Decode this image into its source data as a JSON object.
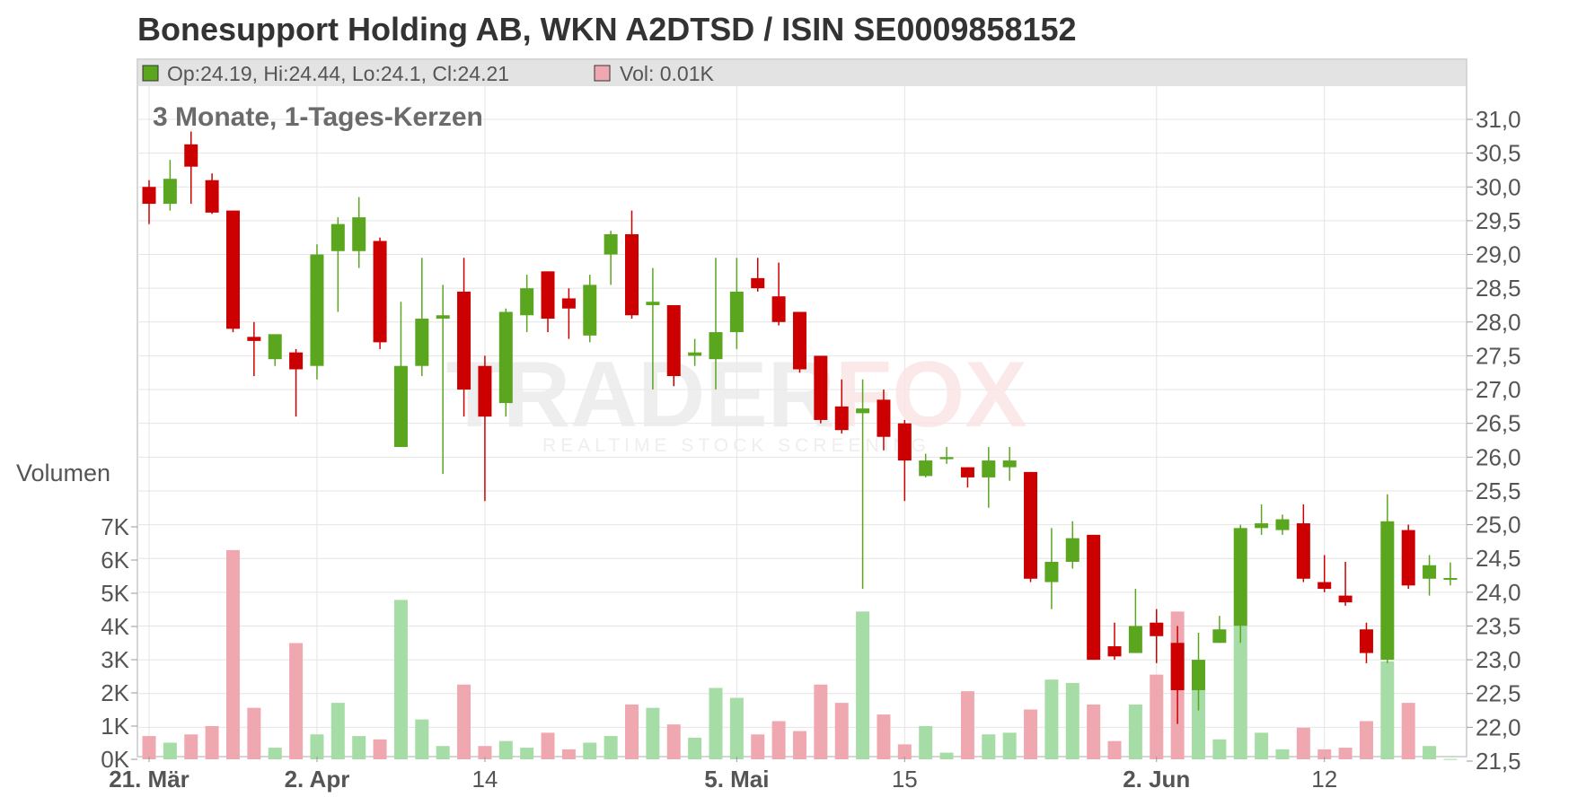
{
  "title": "Bonesupport Holding AB, WKN A2DTSD / ISIN SE0009858152",
  "subtitle": "3 Monate, 1-Tages-Kerzen",
  "info": {
    "ohlc_text": "Op:24.19, Hi:24.44, Lo:24.1, Cl:24.21",
    "vol_text": "Vol: 0.01K",
    "up_color": "#5aa61e",
    "vol_color": "#f0a8b0"
  },
  "watermark": {
    "brand_part1": "TRADER",
    "brand_part2": "FOX",
    "tagline": "REALTIME STOCK SCREENING"
  },
  "chart_data": {
    "type": "candlestick",
    "price_axis": {
      "min": 21.5,
      "max": 31.0,
      "step": 0.5,
      "tick_labels": [
        "21,5",
        "22,0",
        "22,5",
        "23,0",
        "23,5",
        "24,0",
        "24,5",
        "25,0",
        "25,5",
        "26,0",
        "26,5",
        "27,0",
        "27,5",
        "28,0",
        "28,5",
        "29,0",
        "29,5",
        "30,0",
        "30,5",
        "31,0"
      ]
    },
    "volume_axis": {
      "label": "Volumen",
      "min": 0,
      "max": 7000,
      "tick_labels": [
        "0K",
        "1K",
        "2K",
        "3K",
        "4K",
        "5K",
        "6K",
        "7K"
      ],
      "tick_values": [
        0,
        1000,
        2000,
        3000,
        4000,
        5000,
        6000,
        7000
      ]
    },
    "x_labels": [
      {
        "text": "21. Mär",
        "index": 0,
        "bold": true
      },
      {
        "text": "2. Apr",
        "index": 8,
        "bold": true
      },
      {
        "text": "14",
        "index": 16,
        "bold": false
      },
      {
        "text": "5. Mai",
        "index": 28,
        "bold": true
      },
      {
        "text": "15",
        "index": 36,
        "bold": false
      },
      {
        "text": "2. Jun",
        "index": 48,
        "bold": true
      },
      {
        "text": "12",
        "index": 56,
        "bold": false
      }
    ],
    "colors": {
      "up": "#5aa61e",
      "down": "#cc0000",
      "vol_up": "#a6dca6",
      "vol_down": "#f0a8b0",
      "vol_neutral": "#bbbbbb"
    },
    "candles": [
      {
        "o": 30.0,
        "h": 30.1,
        "l": 29.45,
        "c": 29.75,
        "v": 700
      },
      {
        "o": 29.75,
        "h": 30.4,
        "l": 29.65,
        "c": 30.12,
        "v": 500
      },
      {
        "o": 30.63,
        "h": 30.82,
        "l": 29.75,
        "c": 30.3,
        "v": 750
      },
      {
        "o": 30.1,
        "h": 30.2,
        "l": 29.6,
        "c": 29.62,
        "v": 1000
      },
      {
        "o": 29.65,
        "h": 29.65,
        "l": 27.85,
        "c": 27.9,
        "v": 6300
      },
      {
        "o": 27.78,
        "h": 28.0,
        "l": 27.2,
        "c": 27.72,
        "v": 1550
      },
      {
        "o": 27.45,
        "h": 27.8,
        "l": 27.35,
        "c": 27.82,
        "v": 350
      },
      {
        "o": 27.55,
        "h": 27.6,
        "l": 26.6,
        "c": 27.3,
        "v": 3500
      },
      {
        "o": 27.35,
        "h": 29.15,
        "l": 27.15,
        "c": 29.0,
        "v": 750
      },
      {
        "o": 29.05,
        "h": 29.55,
        "l": 28.15,
        "c": 29.45,
        "v": 1700
      },
      {
        "o": 29.05,
        "h": 29.85,
        "l": 28.8,
        "c": 29.55,
        "v": 700
      },
      {
        "o": 29.2,
        "h": 29.25,
        "l": 27.6,
        "c": 27.7,
        "v": 600
      },
      {
        "o": 26.15,
        "h": 28.3,
        "l": 26.15,
        "c": 27.35,
        "v": 4800
      },
      {
        "o": 27.35,
        "h": 28.95,
        "l": 27.2,
        "c": 28.05,
        "v": 1200
      },
      {
        "o": 28.05,
        "h": 28.55,
        "l": 25.75,
        "c": 28.1,
        "v": 400
      },
      {
        "o": 28.45,
        "h": 28.95,
        "l": 26.6,
        "c": 27.0,
        "v": 2250
      },
      {
        "o": 27.35,
        "h": 27.5,
        "l": 25.35,
        "c": 26.6,
        "v": 400
      },
      {
        "o": 26.8,
        "h": 28.2,
        "l": 26.6,
        "c": 28.15,
        "v": 550
      },
      {
        "o": 28.1,
        "h": 28.7,
        "l": 27.85,
        "c": 28.5,
        "v": 350
      },
      {
        "o": 28.75,
        "h": 28.75,
        "l": 27.85,
        "c": 28.05,
        "v": 800
      },
      {
        "o": 28.35,
        "h": 28.5,
        "l": 27.75,
        "c": 28.2,
        "v": 300
      },
      {
        "o": 27.8,
        "h": 28.7,
        "l": 27.7,
        "c": 28.55,
        "v": 500
      },
      {
        "o": 29.0,
        "h": 29.35,
        "l": 28.55,
        "c": 29.3,
        "v": 700
      },
      {
        "o": 29.3,
        "h": 29.65,
        "l": 28.05,
        "c": 28.1,
        "v": 1650
      },
      {
        "o": 28.25,
        "h": 28.8,
        "l": 27.0,
        "c": 28.3,
        "v": 1550
      },
      {
        "o": 28.25,
        "h": 28.25,
        "l": 27.05,
        "c": 27.2,
        "v": 1050
      },
      {
        "o": 27.5,
        "h": 27.75,
        "l": 27.35,
        "c": 27.55,
        "v": 650
      },
      {
        "o": 27.45,
        "h": 28.95,
        "l": 27.0,
        "c": 27.85,
        "v": 2150
      },
      {
        "o": 27.85,
        "h": 28.95,
        "l": 27.6,
        "c": 28.45,
        "v": 1850
      },
      {
        "o": 28.65,
        "h": 28.95,
        "l": 28.45,
        "c": 28.5,
        "v": 750
      },
      {
        "o": 28.38,
        "h": 28.88,
        "l": 27.95,
        "c": 28.0,
        "v": 1150
      },
      {
        "o": 28.15,
        "h": 28.15,
        "l": 27.25,
        "c": 27.3,
        "v": 850
      },
      {
        "o": 27.5,
        "h": 27.5,
        "l": 26.5,
        "c": 26.55,
        "v": 2250
      },
      {
        "o": 26.75,
        "h": 27.15,
        "l": 26.35,
        "c": 26.4,
        "v": 1700
      },
      {
        "o": 26.65,
        "h": 27.15,
        "l": 24.05,
        "c": 26.72,
        "v": 4450
      },
      {
        "o": 26.85,
        "h": 27.0,
        "l": 26.1,
        "c": 26.3,
        "v": 1350
      },
      {
        "o": 26.5,
        "h": 26.55,
        "l": 25.35,
        "c": 25.95,
        "v": 450
      },
      {
        "o": 25.72,
        "h": 26.05,
        "l": 25.7,
        "c": 25.95,
        "v": 1000
      },
      {
        "o": 25.97,
        "h": 26.15,
        "l": 25.9,
        "c": 26.0,
        "v": 200
      },
      {
        "o": 25.85,
        "h": 25.85,
        "l": 25.55,
        "c": 25.7,
        "v": 2050
      },
      {
        "o": 25.7,
        "h": 26.15,
        "l": 25.25,
        "c": 25.95,
        "v": 750
      },
      {
        "o": 25.85,
        "h": 26.15,
        "l": 25.65,
        "c": 25.95,
        "v": 800
      },
      {
        "o": 25.78,
        "h": 25.78,
        "l": 24.15,
        "c": 24.2,
        "v": 1500
      },
      {
        "o": 24.15,
        "h": 24.95,
        "l": 23.75,
        "c": 24.45,
        "v": 2400
      },
      {
        "o": 24.45,
        "h": 25.05,
        "l": 24.35,
        "c": 24.8,
        "v": 2300
      },
      {
        "o": 24.85,
        "h": 24.85,
        "l": 23.0,
        "c": 23.0,
        "v": 1650
      },
      {
        "o": 23.2,
        "h": 23.55,
        "l": 23.0,
        "c": 23.05,
        "v": 550
      },
      {
        "o": 23.1,
        "h": 24.05,
        "l": 23.1,
        "c": 23.5,
        "v": 1650
      },
      {
        "o": 23.55,
        "h": 23.75,
        "l": 22.95,
        "c": 23.35,
        "v": 2550
      },
      {
        "o": 23.25,
        "h": 23.5,
        "l": 22.05,
        "c": 22.55,
        "v": 4450
      },
      {
        "o": 22.55,
        "h": 23.4,
        "l": 22.25,
        "c": 23.0,
        "v": 2100
      },
      {
        "o": 23.25,
        "h": 23.65,
        "l": 23.25,
        "c": 23.45,
        "v": 600
      },
      {
        "o": 23.5,
        "h": 25.0,
        "l": 23.25,
        "c": 24.95,
        "v": 4000
      },
      {
        "o": 24.95,
        "h": 25.3,
        "l": 24.85,
        "c": 25.02,
        "v": 800
      },
      {
        "o": 24.92,
        "h": 25.15,
        "l": 24.85,
        "c": 25.08,
        "v": 300
      },
      {
        "o": 25.02,
        "h": 25.3,
        "l": 24.15,
        "c": 24.2,
        "v": 950
      },
      {
        "o": 24.15,
        "h": 24.55,
        "l": 24.0,
        "c": 24.05,
        "v": 300
      },
      {
        "o": 23.95,
        "h": 24.45,
        "l": 23.8,
        "c": 23.85,
        "v": 350
      },
      {
        "o": 23.45,
        "h": 23.55,
        "l": 22.95,
        "c": 23.1,
        "v": 1150
      },
      {
        "o": 23.0,
        "h": 25.45,
        "l": 22.95,
        "c": 25.05,
        "v": 2950
      },
      {
        "o": 24.92,
        "h": 25.0,
        "l": 24.05,
        "c": 24.1,
        "v": 1700
      },
      {
        "o": 24.2,
        "h": 24.55,
        "l": 23.95,
        "c": 24.4,
        "v": 400
      },
      {
        "o": 24.19,
        "h": 24.44,
        "l": 24.1,
        "c": 24.21,
        "v": 10
      }
    ]
  }
}
